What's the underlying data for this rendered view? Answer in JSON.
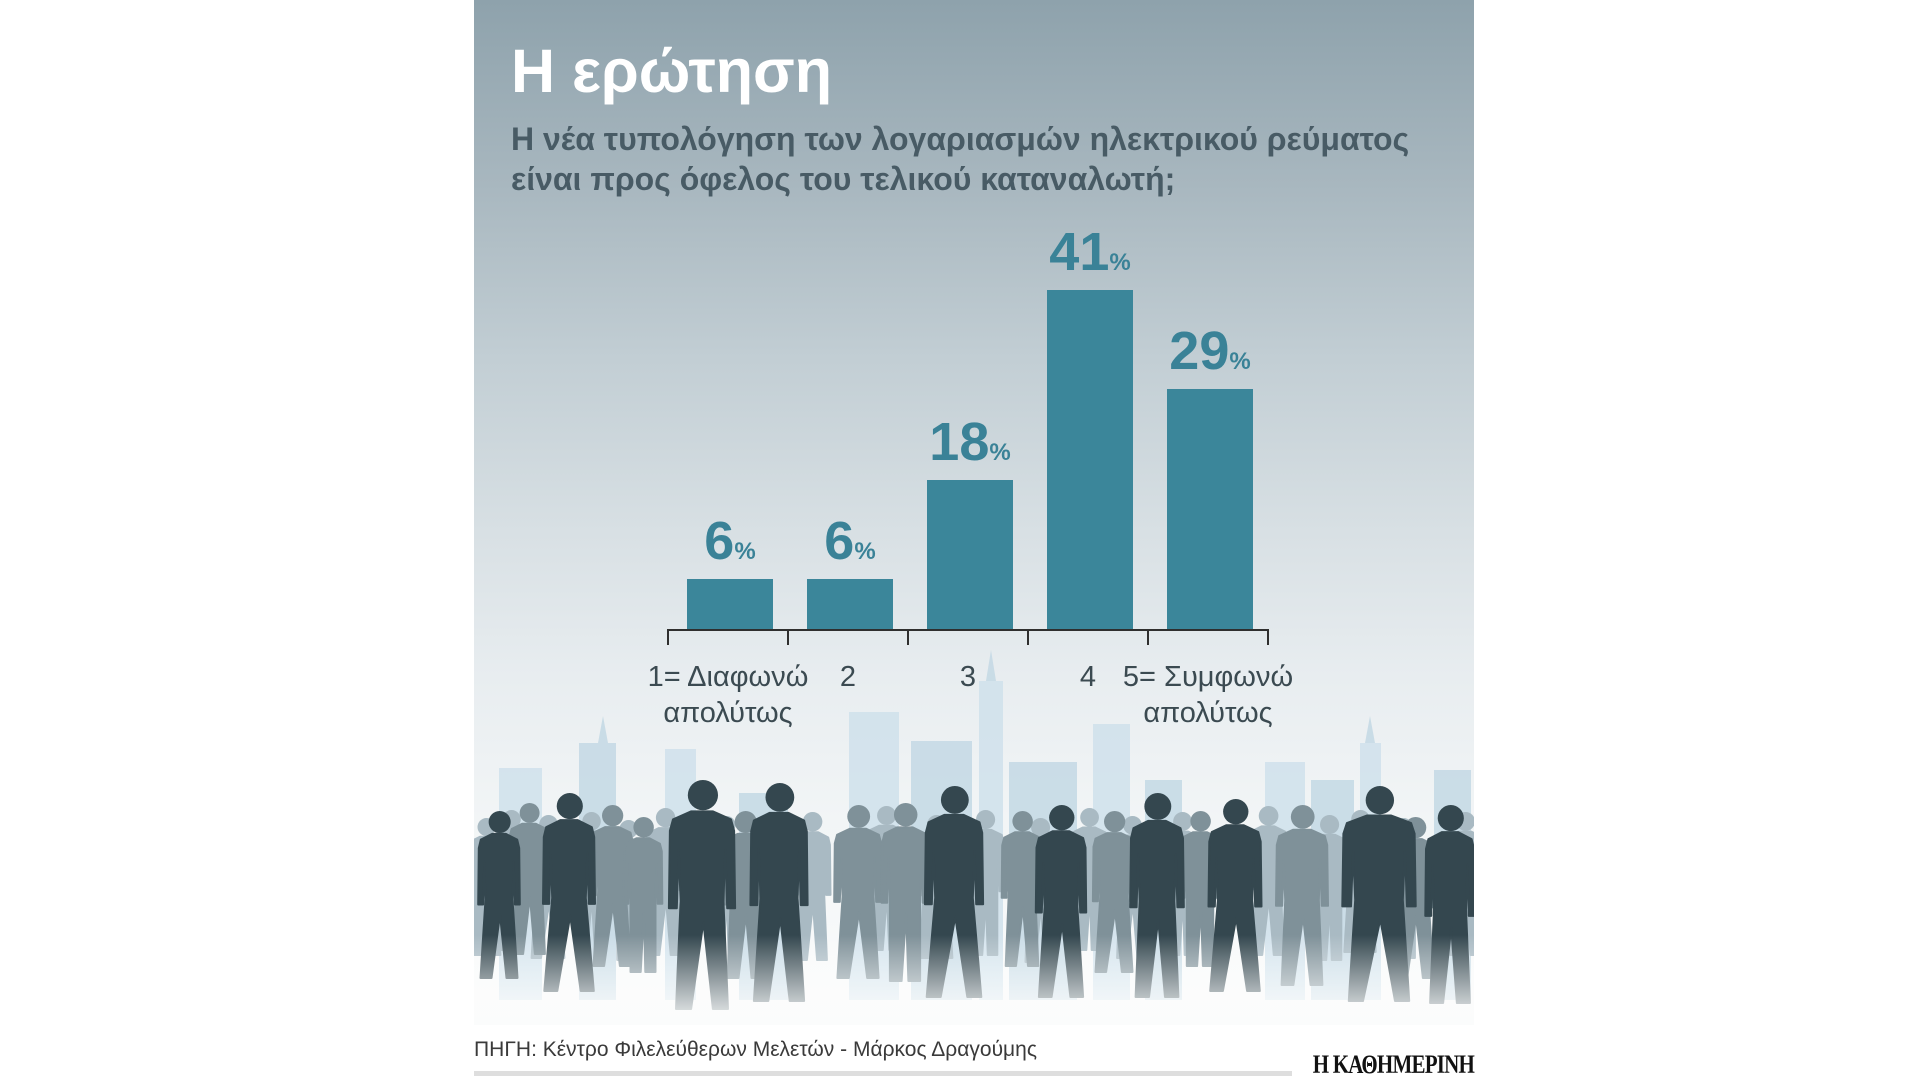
{
  "chart_data": {
    "type": "bar",
    "title": "Η ερώτηση",
    "subtitle": "Η νέα τυπολόγηση των λογαριασμών ηλεκτρικού ρεύματος\nείναι προς όφελος του τελικού καταναλωτή;",
    "categories": [
      "1= Διαφωνώ\nαπολύτως",
      "2",
      "3",
      "4",
      "5= Συμφωνώ\nαπολύτως"
    ],
    "values": [
      6,
      6,
      18,
      41,
      29
    ],
    "value_suffix": "%",
    "grid": false
  },
  "footer": {
    "source": "ΠΗΓΗ: Κέντρο Φιλελεύθερων Μελετών - Μάρκος Δραγούμης",
    "brand": "Η ΚΑΘΗΜΕΡΙΝΗ"
  },
  "colors": {
    "bar": "#3b869a",
    "value_label": "#3a8297",
    "title": "#ffffff",
    "subtitle": "#485b65",
    "category_label": "#3b4a51",
    "crowd_front": "#34474f",
    "crowd_mid": "#7f9199",
    "crowd_back": "#a9bac3",
    "skyline_a": "#cfe1eb",
    "skyline_b": "#c3d8e4"
  }
}
